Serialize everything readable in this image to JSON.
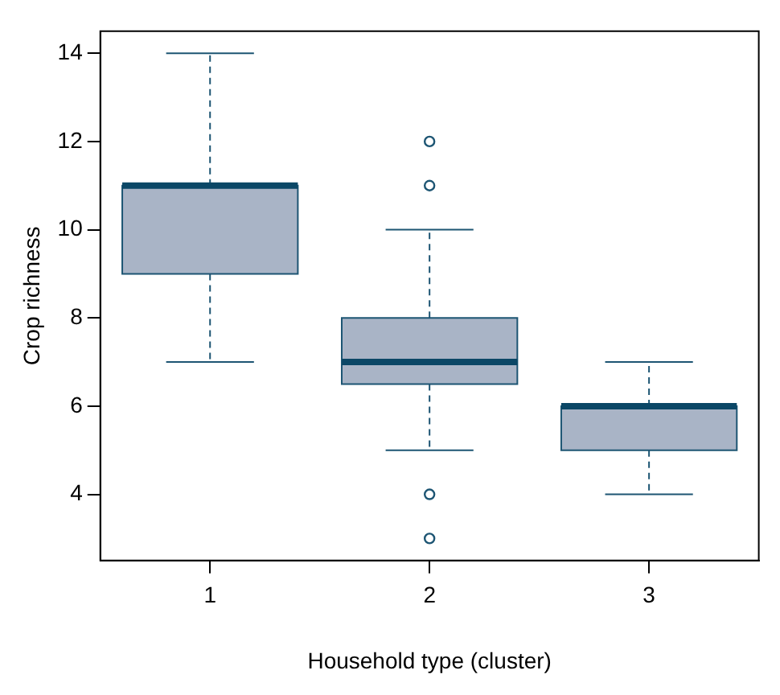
{
  "chart_data": {
    "type": "box",
    "xlabel": "Household type (cluster)",
    "ylabel": "Crop richness",
    "categories": [
      "1",
      "2",
      "3"
    ],
    "boxes": [
      {
        "low": 7,
        "q1": 9,
        "median": 11,
        "q3": 11,
        "high": 14
      },
      {
        "low": 5,
        "q1": 6.5,
        "median": 7,
        "q3": 8,
        "high": 10,
        "outliers": [
          12,
          11,
          4,
          3
        ]
      },
      {
        "low": 4,
        "q1": 5,
        "median": 6,
        "q3": 6,
        "high": 7
      }
    ],
    "color": "#a9b4c6",
    "ylim": [
      2.5,
      14.5
    ],
    "yticks": [
      4,
      6,
      8,
      10,
      12,
      14
    ],
    "grid": false,
    "legend": false
  }
}
